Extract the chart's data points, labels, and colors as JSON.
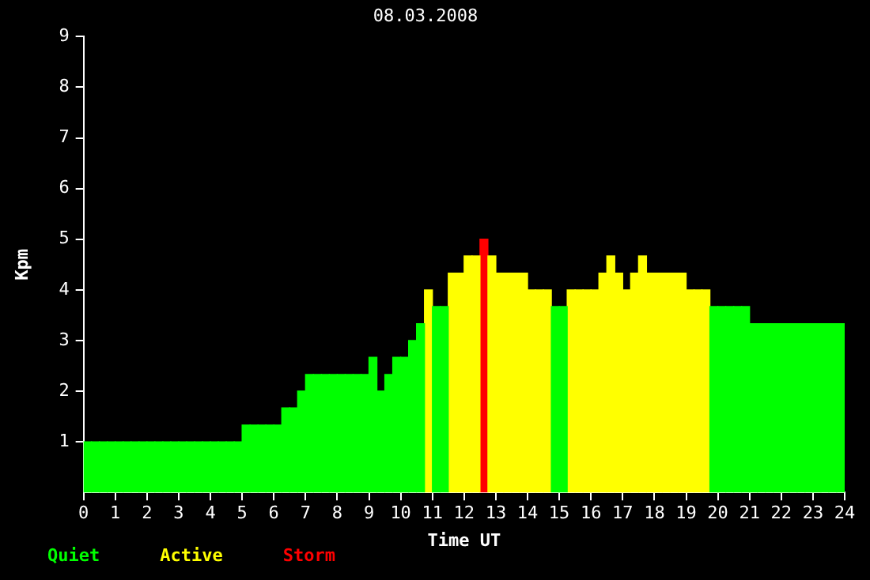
{
  "chart_data": {
    "type": "histogram",
    "title": "08.03.2008",
    "xlabel": "Time UT",
    "ylabel": "Kpm",
    "bins": [
      0,
      0.25,
      0.5,
      0.75,
      1,
      1.25,
      1.5,
      1.75,
      2,
      2.25,
      2.5,
      2.75,
      3,
      3.25,
      3.5,
      3.75,
      4,
      4.25,
      4.5,
      4.75,
      5,
      5.25,
      5.5,
      5.75,
      6,
      6.25,
      6.5,
      6.75,
      7,
      7.25,
      7.5,
      7.75,
      8,
      8.25,
      8.5,
      8.75,
      9,
      9.25,
      9.5,
      9.75,
      10,
      10.25,
      10.5,
      10.75,
      11,
      11.25,
      11.5,
      11.75,
      12,
      12.25,
      12.5,
      12.75,
      13,
      13.25,
      13.5,
      13.75,
      14,
      14.25,
      14.5,
      14.75,
      15,
      15.25,
      15.5,
      15.75,
      16,
      16.25,
      16.5,
      16.75,
      17,
      17.25,
      17.5,
      17.75,
      18,
      18.25,
      18.5,
      18.75,
      19,
      19.25,
      19.5,
      19.75,
      20,
      20.25,
      20.5,
      20.75,
      21,
      21.25,
      21.5,
      21.75,
      22,
      22.25,
      22.5,
      22.75,
      23,
      23.25,
      23.5,
      23.75,
      24
    ],
    "series": [
      {
        "name": "Quiet",
        "color": "#00ff00",
        "values": [
          1,
          1,
          1,
          1,
          1,
          1,
          1,
          1,
          1,
          1,
          1,
          1,
          1,
          1,
          1,
          1,
          1,
          1,
          1,
          1,
          1.33,
          1.33,
          1.33,
          1.33,
          1.33,
          1.67,
          1.67,
          2,
          2.33,
          2.33,
          2.33,
          2.33,
          2.33,
          2.33,
          2.33,
          2.33,
          2.67,
          2,
          2.33,
          2.67,
          2.67,
          3,
          3.33,
          null,
          3.67,
          3.67,
          null,
          null,
          null,
          null,
          null,
          null,
          null,
          null,
          null,
          null,
          null,
          null,
          null,
          3.67,
          3.67,
          null,
          null,
          null,
          null,
          null,
          null,
          null,
          null,
          null,
          null,
          null,
          null,
          null,
          null,
          null,
          null,
          null,
          null,
          3.67,
          3.67,
          3.67,
          3.67,
          3.67,
          3.33,
          3.33,
          3.33,
          3.33,
          3.33,
          3.33,
          3.33,
          3.33,
          3.33,
          3.33,
          3.33,
          3.33
        ]
      },
      {
        "name": "Active",
        "color": "#ffff00",
        "values": [
          null,
          null,
          null,
          null,
          null,
          null,
          null,
          null,
          null,
          null,
          null,
          null,
          null,
          null,
          null,
          null,
          null,
          null,
          null,
          null,
          null,
          null,
          null,
          null,
          null,
          null,
          null,
          null,
          null,
          null,
          null,
          null,
          null,
          null,
          null,
          null,
          null,
          null,
          null,
          null,
          null,
          null,
          null,
          4,
          null,
          null,
          4.33,
          4.33,
          4.67,
          4.67,
          null,
          4.67,
          4.33,
          4.33,
          4.33,
          4.33,
          4,
          4,
          4,
          null,
          null,
          4,
          4,
          4,
          4,
          4.33,
          4.67,
          4.33,
          4,
          4.33,
          4.67,
          4.33,
          4.33,
          4.33,
          4.33,
          4.33,
          4,
          4,
          4,
          null,
          null,
          null,
          null,
          null,
          null,
          null,
          null,
          null,
          null,
          null,
          null,
          null,
          null,
          null,
          null,
          null
        ]
      },
      {
        "name": "Storm",
        "color": "#ff0000",
        "values": [
          null,
          null,
          null,
          null,
          null,
          null,
          null,
          null,
          null,
          null,
          null,
          null,
          null,
          null,
          null,
          null,
          null,
          null,
          null,
          null,
          null,
          null,
          null,
          null,
          null,
          null,
          null,
          null,
          null,
          null,
          null,
          null,
          null,
          null,
          null,
          null,
          null,
          null,
          null,
          null,
          null,
          null,
          null,
          null,
          null,
          null,
          null,
          null,
          null,
          null,
          5,
          null,
          null,
          null,
          null,
          null,
          null,
          null,
          null,
          null,
          null,
          null,
          null,
          null,
          null,
          null,
          null,
          null,
          null,
          null,
          null,
          null,
          null,
          null,
          null,
          null,
          null,
          null,
          null,
          null,
          null,
          null,
          null,
          null,
          null,
          null,
          null,
          null,
          null,
          null,
          null,
          null,
          null,
          null,
          null,
          null
        ]
      }
    ],
    "xlim": [
      0,
      24
    ],
    "xticks": [
      0,
      1,
      2,
      3,
      4,
      5,
      6,
      7,
      8,
      9,
      10,
      11,
      12,
      13,
      14,
      15,
      16,
      17,
      18,
      19,
      20,
      21,
      22,
      23,
      24
    ],
    "ylim": [
      0,
      9
    ],
    "yticks": [
      1,
      2,
      3,
      4,
      5,
      6,
      7,
      8,
      9
    ],
    "grid": false,
    "legend": "bottom left"
  }
}
